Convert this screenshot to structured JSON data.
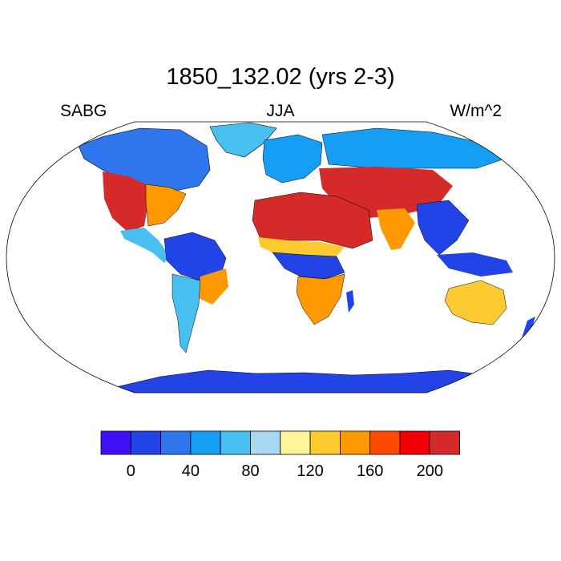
{
  "title": "1850_132.02 (yrs 2-3)",
  "left_label": "SABG",
  "center_label": "JJA",
  "right_label": "W/m^2",
  "colors": {
    "ocean": "#ffffff",
    "outline": "#000000",
    "palette": [
      "#3f10f5",
      "#2244e6",
      "#2f75ec",
      "#159ef3",
      "#47bff1",
      "#a8d9f0",
      "#fef59a",
      "#fdcb2f",
      "#fe9904",
      "#fe4a00",
      "#f00005",
      "#d42a2a"
    ]
  },
  "colorbar": {
    "tick_labels": [
      "0",
      "40",
      "80",
      "120",
      "160",
      "200"
    ],
    "levels": [
      0,
      20,
      40,
      60,
      80,
      100,
      120,
      140,
      160,
      180,
      200
    ]
  },
  "regions": [
    {
      "name": "greenland",
      "color": "#47bff1"
    },
    {
      "name": "north-america-north",
      "color": "#2f75ec"
    },
    {
      "name": "north-america-west",
      "color": "#d42a2a"
    },
    {
      "name": "north-america-east",
      "color": "#fe9904"
    },
    {
      "name": "mexico",
      "color": "#47bff1"
    },
    {
      "name": "south-america-amazon",
      "color": "#2244e6"
    },
    {
      "name": "south-america-south",
      "color": "#47bff1"
    },
    {
      "name": "south-america-east",
      "color": "#fe9904"
    },
    {
      "name": "europe",
      "color": "#159ef3"
    },
    {
      "name": "sahara-arabia",
      "color": "#d42a2a"
    },
    {
      "name": "sahel",
      "color": "#fdcb2f"
    },
    {
      "name": "central-africa",
      "color": "#2244e6"
    },
    {
      "name": "southern-africa",
      "color": "#fe9904"
    },
    {
      "name": "siberia",
      "color": "#159ef3"
    },
    {
      "name": "central-asia",
      "color": "#d42a2a"
    },
    {
      "name": "india",
      "color": "#fe9904"
    },
    {
      "name": "southeast-asia",
      "color": "#2244e6"
    },
    {
      "name": "australia",
      "color": "#fdcb2f"
    },
    {
      "name": "antarctica",
      "color": "#2244e6"
    }
  ]
}
